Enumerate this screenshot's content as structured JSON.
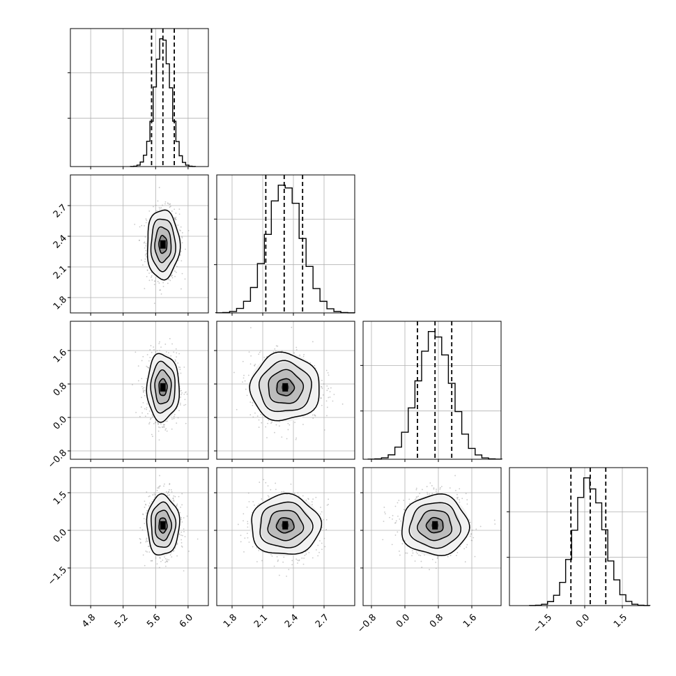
{
  "chart_data": {
    "type": "corner",
    "title": "",
    "parameters": [
      {
        "label": "",
        "range": [
          4.55,
          6.25
        ],
        "ticks": [
          "4.8",
          "5.2",
          "5.6",
          "6.0"
        ],
        "quantiles": [
          5.55,
          5.69,
          5.83
        ],
        "mean": 5.69,
        "sd": 0.1
      },
      {
        "label": "",
        "range": [
          1.65,
          3.0
        ],
        "ticks": [
          "1.8",
          "2.1",
          "2.4",
          "2.7"
        ],
        "quantiles": [
          2.13,
          2.31,
          2.49
        ],
        "mean": 2.32,
        "sd": 0.17
      },
      {
        "label": "",
        "range": [
          -1.0,
          2.3
        ],
        "ticks": [
          "-0.8",
          "0.0",
          "0.8",
          "1.6"
        ],
        "quantiles": [
          0.3,
          0.72,
          1.12
        ],
        "mean": 0.72,
        "sd": 0.4
      },
      {
        "label": "",
        "range": [
          -3.0,
          2.5
        ],
        "ticks": [
          "-1.5",
          "0.0",
          "1.5"
        ],
        "quantiles": [
          -0.55,
          0.22,
          0.84
        ],
        "mean": 0.2,
        "sd": 0.6
      }
    ],
    "contour_levels": [
      "0.5 sigma",
      "1 sigma",
      "1.5 sigma",
      "2 sigma"
    ],
    "histogram_bins": 20,
    "grid": true,
    "legend": "none",
    "colors": {
      "line": "#000000",
      "grid": "#b0b0b0",
      "points": "#9a9a9a"
    }
  }
}
